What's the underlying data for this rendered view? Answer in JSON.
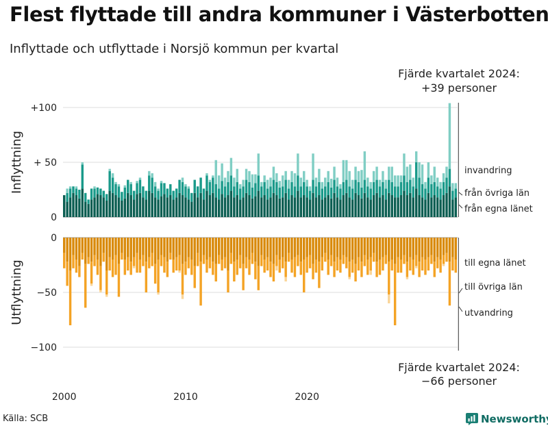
{
  "title": "Flest flyttade till andra kommuner i Västerbotten",
  "subtitle": "Inflyttade och utflyttade i Norsjö kommun per kvartal",
  "source": "Källa: SCB",
  "brand": {
    "name": "Newsworthy",
    "icon": "newsworthy-logo-icon",
    "color": "#1a7f74"
  },
  "chart_data": {
    "type": "bar",
    "stacked": true,
    "x_unit": "kvartal",
    "x_start": 2000,
    "xticks": [
      2000,
      2010,
      2020
    ],
    "xtick_labels": [
      "2000",
      "2010",
      "2020"
    ],
    "panels": [
      {
        "name": "inflyttning",
        "ylabel": "Inflyttning",
        "ylim": [
          0,
          100
        ],
        "yticks": [
          0,
          50,
          100
        ],
        "ytick_labels": [
          "0",
          "+ 50",
          "+100"
        ],
        "grid": true,
        "series": [
          {
            "name": "från egna länet",
            "color": "#0c5e52",
            "values": [
              20,
              14,
              18,
              22,
              20,
              17,
              26,
              14,
              12,
              16,
              18,
              21,
              20,
              18,
              15,
              24,
              22,
              20,
              18,
              15,
              17,
              22,
              20,
              16,
              21,
              22,
              18,
              16,
              24,
              22,
              18,
              16,
              19,
              21,
              18,
              20,
              16,
              18,
              22,
              20,
              18,
              16,
              14,
              22,
              18,
              22,
              16,
              24,
              20,
              22,
              18,
              16,
              21,
              18,
              20,
              24,
              18,
              20,
              16,
              18,
              22,
              20,
              17,
              19,
              24,
              18,
              20,
              16,
              18,
              22,
              20,
              17,
              18,
              22,
              16,
              20,
              18,
              24,
              18,
              20,
              18,
              16,
              22,
              18,
              20,
              16,
              18,
              20,
              17,
              22,
              18,
              16,
              20,
              22,
              18,
              16,
              22,
              20,
              17,
              22,
              18,
              16,
              20,
              22,
              18,
              20,
              16,
              22,
              20,
              18,
              18,
              20,
              24,
              20,
              22,
              18,
              26,
              20,
              18,
              16,
              22,
              18,
              20,
              18,
              16,
              20,
              22,
              28,
              16,
              18
            ]
          },
          {
            "name": "från övriga län",
            "color": "#1a9a8a",
            "values": [
              0,
              8,
              8,
              6,
              6,
              8,
              22,
              8,
              4,
              10,
              8,
              6,
              6,
              6,
              6,
              18,
              14,
              10,
              10,
              8,
              10,
              12,
              10,
              8,
              10,
              12,
              10,
              8,
              14,
              14,
              10,
              8,
              12,
              10,
              8,
              10,
              8,
              8,
              12,
              12,
              10,
              10,
              8,
              12,
              10,
              14,
              10,
              14,
              12,
              14,
              12,
              10,
              12,
              10,
              12,
              14,
              10,
              12,
              10,
              10,
              12,
              12,
              10,
              12,
              14,
              10,
              12,
              10,
              10,
              12,
              12,
              10,
              10,
              12,
              10,
              12,
              10,
              14,
              10,
              12,
              10,
              8,
              12,
              10,
              12,
              10,
              10,
              12,
              10,
              12,
              10,
              10,
              12,
              12,
              10,
              10,
              12,
              12,
              10,
              12,
              10,
              10,
              12,
              12,
              10,
              12,
              10,
              12,
              12,
              10,
              10,
              12,
              14,
              12,
              12,
              10,
              24,
              16,
              12,
              10,
              14,
              12,
              12,
              10,
              10,
              12,
              14,
              16,
              8,
              8
            ]
          },
          {
            "name": "invandring",
            "color": "#80cec4",
            "values": [
              0,
              4,
              2,
              0,
              2,
              0,
              2,
              0,
              0,
              0,
              2,
              0,
              0,
              0,
              0,
              2,
              4,
              2,
              2,
              0,
              2,
              0,
              2,
              0,
              2,
              2,
              0,
              0,
              4,
              4,
              4,
              2,
              2,
              0,
              0,
              0,
              0,
              0,
              0,
              4,
              2,
              2,
              0,
              0,
              0,
              0,
              0,
              2,
              2,
              2,
              22,
              12,
              16,
              8,
              10,
              16,
              8,
              12,
              4,
              6,
              10,
              10,
              12,
              8,
              20,
              4,
              6,
              8,
              8,
              12,
              8,
              6,
              10,
              8,
              8,
              10,
              12,
              20,
              8,
              10,
              6,
              4,
              24,
              8,
              12,
              6,
              8,
              10,
              8,
              12,
              8,
              4,
              20,
              18,
              14,
              8,
              12,
              10,
              16,
              26,
              8,
              6,
              10,
              12,
              6,
              10,
              8,
              12,
              14,
              10,
              10,
              6,
              20,
              14,
              14,
              8,
              10,
              14,
              18,
              6,
              14,
              8,
              14,
              8,
              6,
              8,
              10,
              60,
              7,
              5
            ]
          }
        ]
      },
      {
        "name": "utflyttning",
        "ylabel": "Utflyttning",
        "ylim": [
          -100,
          0
        ],
        "yticks": [
          -100,
          -50,
          0
        ],
        "ytick_labels": [
          "−100",
          "−50",
          "0"
        ],
        "grid": true,
        "series": [
          {
            "name": "till egna länet",
            "color": "#d98a0b",
            "values": [
              -14,
              -22,
              -30,
              -16,
              -20,
              -26,
              -14,
              -24,
              -18,
              -22,
              -16,
              -20,
              -26,
              -14,
              -30,
              -18,
              -20,
              -16,
              -24,
              -14,
              -20,
              -18,
              -22,
              -18,
              -14,
              -20,
              -16,
              -22,
              -18,
              -14,
              -24,
              -20,
              -16,
              -18,
              -22,
              -14,
              -20,
              -18,
              -16,
              -24,
              -22,
              -18,
              -20,
              -26,
              -14,
              -22,
              -16,
              -20,
              -18,
              -22,
              -24,
              -16,
              -20,
              -18,
              -30,
              -14,
              -22,
              -20,
              -16,
              -24,
              -18,
              -20,
              -14,
              -22,
              -26,
              -16,
              -20,
              -18,
              -22,
              -24,
              -16,
              -20,
              -18,
              -22,
              -14,
              -20,
              -18,
              -16,
              -22,
              -20,
              -18,
              -16,
              -24,
              -20,
              -22,
              -18,
              -14,
              -20,
              -16,
              -22,
              -18,
              -20,
              -16,
              -18,
              -22,
              -20,
              -24,
              -18,
              -22,
              -16,
              -20,
              -18,
              -14,
              -22,
              -20,
              -18,
              -16,
              -22,
              -20,
              -24,
              -18,
              -20,
              -16,
              -22,
              -18,
              -20,
              -16,
              -22,
              -18,
              -20,
              -18,
              -16,
              -22,
              -18,
              -20,
              -16,
              -14,
              -22,
              -18,
              -20
            ]
          },
          {
            "name": "till övriga län",
            "color": "#f4a325",
            "values": [
              -14,
              -22,
              -50,
              -12,
              -12,
              -10,
              -6,
              -40,
              -6,
              -20,
              -10,
              -14,
              -22,
              -8,
              -22,
              -12,
              -16,
              -18,
              -30,
              -6,
              -14,
              -12,
              -12,
              -8,
              -18,
              -12,
              -10,
              -28,
              -10,
              -12,
              -18,
              -30,
              -10,
              -14,
              -14,
              -6,
              -12,
              -12,
              -14,
              -28,
              -12,
              -10,
              -14,
              -20,
              -12,
              -40,
              -8,
              -12,
              -10,
              -12,
              -16,
              -8,
              -10,
              -10,
              -20,
              -10,
              -18,
              -14,
              -12,
              -24,
              -10,
              -14,
              -10,
              -16,
              -22,
              -10,
              -12,
              -12,
              -14,
              -16,
              -10,
              -12,
              -10,
              -14,
              -8,
              -12,
              -18,
              -10,
              -12,
              -30,
              -14,
              -12,
              -14,
              -12,
              -24,
              -12,
              -8,
              -14,
              -10,
              -14,
              -12,
              -12,
              -8,
              -10,
              -14,
              -12,
              -16,
              -12,
              -14,
              -10,
              -14,
              -12,
              -8,
              -14,
              -14,
              -12,
              -8,
              -30,
              -10,
              -56,
              -14,
              -12,
              -8,
              -14,
              -12,
              -14,
              -10,
              -14,
              -12,
              -14,
              -12,
              -8,
              -14,
              -10,
              -12,
              -8,
              -8,
              -40,
              -12,
              -12
            ]
          },
          {
            "name": "utvandring",
            "color": "#fad598",
            "values": [
              0,
              0,
              0,
              0,
              0,
              0,
              0,
              0,
              0,
              -2,
              0,
              0,
              -2,
              0,
              -2,
              0,
              0,
              0,
              0,
              0,
              0,
              0,
              0,
              -2,
              0,
              0,
              0,
              0,
              0,
              0,
              0,
              -2,
              0,
              0,
              0,
              0,
              0,
              0,
              -2,
              -4,
              0,
              0,
              0,
              0,
              0,
              0,
              0,
              0,
              0,
              0,
              0,
              0,
              0,
              0,
              0,
              0,
              0,
              0,
              0,
              0,
              0,
              0,
              0,
              0,
              0,
              0,
              0,
              0,
              0,
              0,
              -4,
              0,
              0,
              -4,
              0,
              0,
              0,
              0,
              0,
              0,
              0,
              0,
              0,
              0,
              0,
              0,
              0,
              0,
              0,
              0,
              0,
              0,
              0,
              0,
              -2,
              0,
              0,
              0,
              0,
              0,
              0,
              -4,
              0,
              0,
              0,
              0,
              0,
              -8,
              0,
              0,
              0,
              0,
              0,
              -2,
              0,
              0,
              -2,
              0,
              0,
              0,
              0,
              0,
              0,
              0,
              0,
              -2,
              0,
              0,
              0,
              0
            ]
          }
        ]
      }
    ],
    "annotations": [
      {
        "text": "Fjärde kvartalet 2024:",
        "line2": "+39 personer"
      },
      {
        "text": "Fjärde kvartalet 2024:",
        "line2": "−66 personer"
      }
    ]
  }
}
